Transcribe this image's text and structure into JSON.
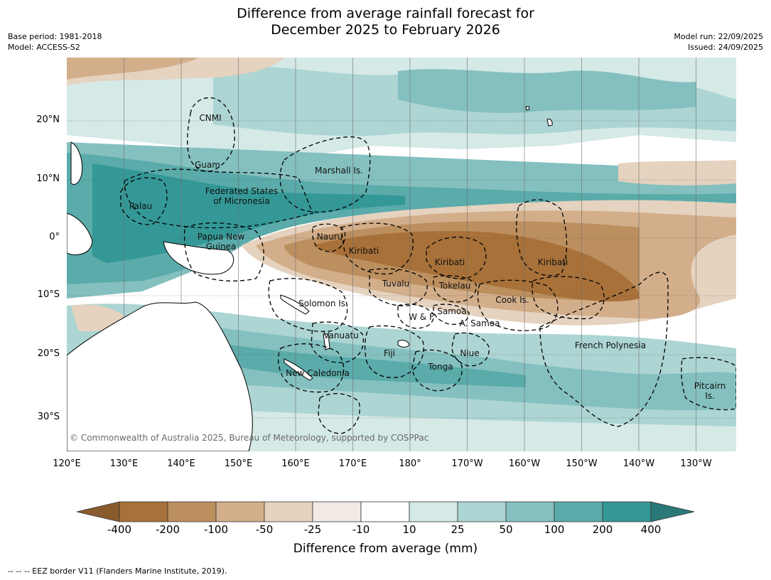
{
  "header": {
    "title_line1": "Difference from average rainfall forecast for",
    "title_line2": "December 2025 to February 2026",
    "base_period": "Base period: 1981-2018",
    "model": "Model: ACCESS-S2",
    "model_run": "Model run: 22/09/2025",
    "issued": "Issued: 24/09/2025"
  },
  "map": {
    "lon_labels": [
      "120°E",
      "130°E",
      "140°E",
      "150°E",
      "160°E",
      "170°E",
      "180°",
      "170°W",
      "160°W",
      "150°W",
      "140°W",
      "130°W"
    ],
    "lat_labels": [
      "20°N",
      "10°N",
      "0°",
      "10°S",
      "20°S",
      "30°S"
    ],
    "regions": [
      {
        "name": "CNMI",
        "lines": [
          "CNMI"
        ]
      },
      {
        "name": "Guam",
        "lines": [
          "Guam"
        ]
      },
      {
        "name": "Marshall Is.",
        "lines": [
          "Marshall Is."
        ]
      },
      {
        "name": "Federated States of Micronesia",
        "lines": [
          "Federated States",
          "of Micronesia"
        ]
      },
      {
        "name": "Palau",
        "lines": [
          "Palau"
        ]
      },
      {
        "name": "Papua New Guinea",
        "lines": [
          "Papua New",
          "Guinea"
        ]
      },
      {
        "name": "Nauru",
        "lines": [
          "Nauru"
        ]
      },
      {
        "name": "Kiribati West",
        "lines": [
          "Kiribati"
        ]
      },
      {
        "name": "Kiribati Central",
        "lines": [
          "Kiribati"
        ]
      },
      {
        "name": "Kiribati East",
        "lines": [
          "Kiribati"
        ]
      },
      {
        "name": "Tuvalu",
        "lines": [
          "Tuvalu"
        ]
      },
      {
        "name": "Tokelau",
        "lines": [
          "Tokelau"
        ]
      },
      {
        "name": "Cook Is.",
        "lines": [
          "Cook Is."
        ]
      },
      {
        "name": "Solomon Is.",
        "lines": [
          "Solomon Is."
        ]
      },
      {
        "name": "W & F",
        "lines": [
          "W & F"
        ]
      },
      {
        "name": "Samoa",
        "lines": [
          "Samoa"
        ]
      },
      {
        "name": "A. Samoa",
        "lines": [
          "A. Samoa"
        ]
      },
      {
        "name": "Vanuatu",
        "lines": [
          "Vanuatu"
        ]
      },
      {
        "name": "Fiji",
        "lines": [
          "Fiji"
        ]
      },
      {
        "name": "Niue",
        "lines": [
          "Niue"
        ]
      },
      {
        "name": "Tonga",
        "lines": [
          "Tonga"
        ]
      },
      {
        "name": "New Caledonia",
        "lines": [
          "New Caledonia"
        ]
      },
      {
        "name": "French Polynesia",
        "lines": [
          "French Polynesia"
        ]
      },
      {
        "name": "Pitcairn Is.",
        "lines": [
          "Pitcairn",
          "Is."
        ]
      }
    ],
    "copyright": "© Commonwealth of Australia 2025, Bureau of Meteorology, supported by COSPPac"
  },
  "colorbar": {
    "labels": [
      "-400",
      "-200",
      "-100",
      "-50",
      "-25",
      "-10",
      "10",
      "25",
      "50",
      "100",
      "200",
      "400"
    ],
    "colors": [
      "#a87139",
      "#bc8f5f",
      "#d2ae8a",
      "#e5d2bf",
      "#f2ebe5",
      "#ffffff",
      "#d5e9e7",
      "#acd5d3",
      "#84c0bf",
      "#5aabaa",
      "#349896"
    ],
    "low_extend_color": "#8a5b2c",
    "high_extend_color": "#2a7978",
    "title": "Difference from average (mm)"
  },
  "footnote": "--  --  -- EEZ border V11 (Flanders Marine Institute, 2019)."
}
